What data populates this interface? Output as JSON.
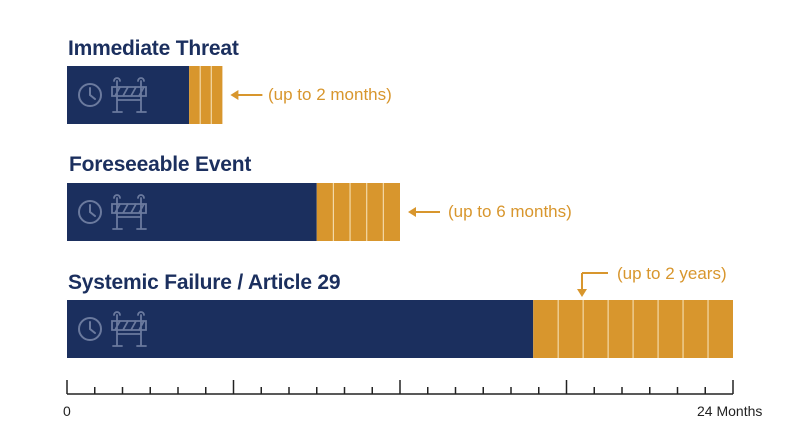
{
  "colors": {
    "navy": "#1b2f5e",
    "orange": "#d8962d",
    "icon": "#6b7a9e",
    "axis": "#222222"
  },
  "icons": [
    "clock-icon",
    "road-barrier-icon"
  ],
  "chart_data": {
    "type": "bar",
    "orientation": "horizontal",
    "stacked": true,
    "xlim": [
      0,
      24
    ],
    "x_unit": "months",
    "x_tick_labels": {
      "start": "0",
      "end": "24 Months"
    },
    "major_tick_every": 6,
    "minor_tick_every": 1,
    "grid": false,
    "categories": [
      "Immediate Threat",
      "Foreseeable Event",
      "Systemic Failure / Article 29"
    ],
    "bars": [
      {
        "label": "Immediate Threat",
        "base_months": 4.4,
        "extension_months": 1.2,
        "extension_segments": 3,
        "note": "(up to 2 months)",
        "note_style": "left-arrow"
      },
      {
        "label": "Foreseeable Event",
        "base_months": 9.0,
        "extension_months": 3.0,
        "extension_segments": 5,
        "note": "(up to 6 months)",
        "note_style": "left-arrow"
      },
      {
        "label": "Systemic Failure / Article 29",
        "base_months": 16.8,
        "extension_months": 7.2,
        "extension_segments": 8,
        "note": "(up to 2 years)",
        "note_style": "down-arrow"
      }
    ]
  }
}
